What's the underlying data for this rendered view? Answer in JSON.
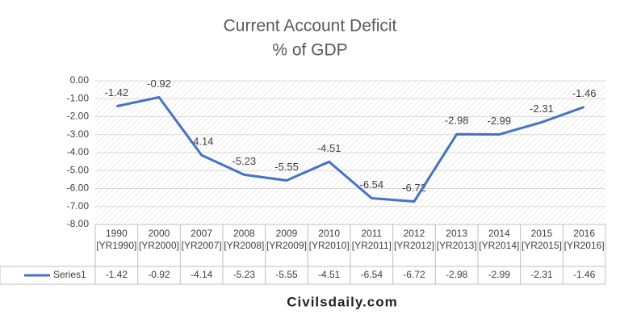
{
  "chart_data": {
    "type": "line",
    "title": "Current Account Deficit",
    "subtitle": "% of GDP",
    "categories": [
      "1990 [YR1990]",
      "2000 [YR2000]",
      "2007 [YR2007]",
      "2008 [YR2008]",
      "2009 [YR2009]",
      "2010 [YR2010]",
      "2011 [YR2011]",
      "2012 [YR2012]",
      "2013 [YR2013]",
      "2014 [YR2014]",
      "2015 [YR2015]",
      "2016 [YR2016]"
    ],
    "series": [
      {
        "name": "Series1",
        "color": "#4472c4",
        "values": [
          -1.42,
          -0.92,
          -4.14,
          -5.23,
          -5.55,
          -4.51,
          -6.54,
          -6.72,
          -2.98,
          -2.99,
          -2.31,
          -1.46
        ]
      }
    ],
    "ylim": [
      -8,
      0
    ],
    "yticks": [
      {
        "value": 0,
        "label": "0.00"
      },
      {
        "value": -1,
        "label": "-1.00"
      },
      {
        "value": -2,
        "label": "-2.00"
      },
      {
        "value": -3,
        "label": "-3.00"
      },
      {
        "value": -4,
        "label": "-4.00"
      },
      {
        "value": -5,
        "label": "-5.00"
      },
      {
        "value": -6,
        "label": "-6.00"
      },
      {
        "value": -7,
        "label": "-7.00"
      },
      {
        "value": -8,
        "label": "-8.00"
      }
    ],
    "grid": true
  },
  "watermark": "Civilsdaily.com"
}
